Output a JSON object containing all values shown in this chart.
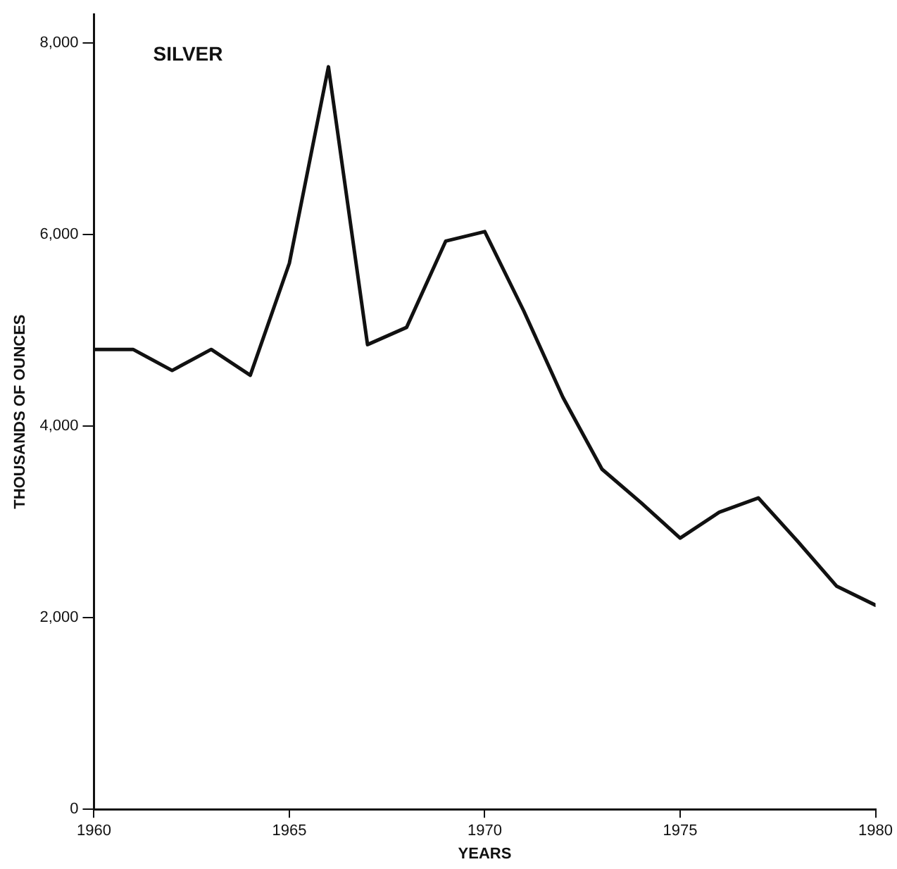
{
  "chart_data": {
    "type": "line",
    "xlabel": "YEARS",
    "ylabel": "THOUSANDS OF OUNCES",
    "annotations": [
      "SILVER"
    ],
    "x": [
      1960,
      1961,
      1962,
      1963,
      1964,
      1965,
      1966,
      1967,
      1968,
      1969,
      1970,
      1971,
      1972,
      1973,
      1974,
      1975,
      1976,
      1977,
      1978,
      1979,
      1980
    ],
    "series": [
      {
        "color": "#111111",
        "values": [
          4800,
          4800,
          4580,
          4800,
          4530,
          5700,
          7750,
          4850,
          5030,
          5930,
          6030,
          5200,
          4300,
          3550,
          3200,
          2830,
          3100,
          3250,
          2800,
          2330,
          2130
        ]
      }
    ],
    "xlim": [
      1960,
      1980
    ],
    "xticks": [
      1960,
      1965,
      1970,
      1975,
      1980
    ],
    "ylim": [
      0,
      8300
    ],
    "yticks": [
      0,
      {
        "value": 2000,
        "label": "2,000"
      },
      {
        "value": 4000,
        "label": "4,000"
      },
      {
        "value": 6000,
        "label": "6,000"
      },
      {
        "value": 8000,
        "label": "8,000"
      }
    ],
    "grid": false,
    "legend": false,
    "marker": "none",
    "line_style": "solid"
  }
}
